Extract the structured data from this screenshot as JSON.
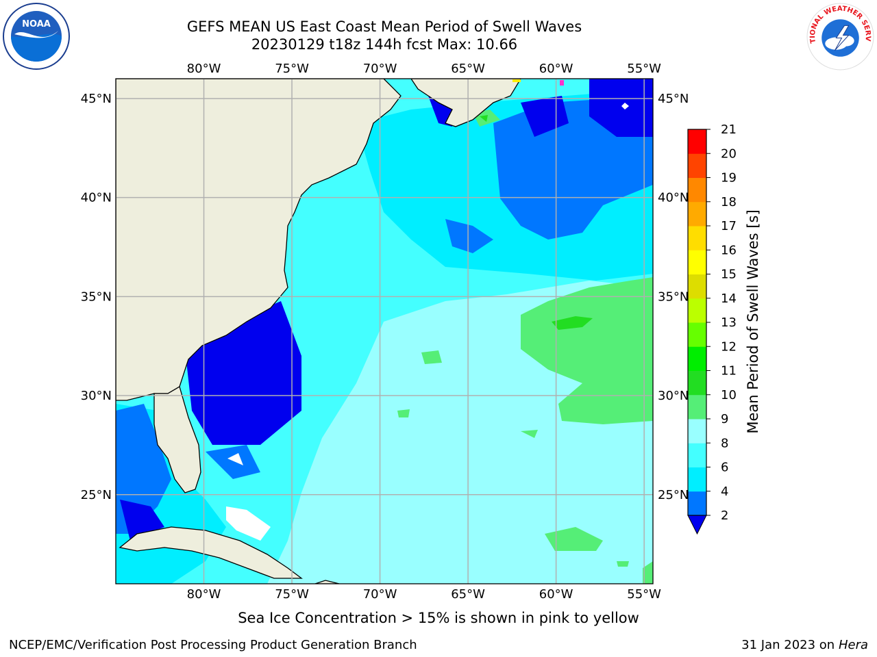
{
  "header": {
    "title_line1": "GEFS MEAN US East Coast Mean Period of Swell Waves",
    "title_line2": "20230129 t18z 144h fcst   Max: 10.66"
  },
  "logos": {
    "left": {
      "text": "NOAA",
      "icon": "noaa-logo-icon"
    },
    "right": {
      "text": "NATIONAL WEATHER SERVICE",
      "icon": "nws-logo-icon"
    }
  },
  "map": {
    "lon_labels": [
      "80°W",
      "75°W",
      "70°W",
      "65°W",
      "60°W",
      "55°W"
    ],
    "lat_labels": [
      "45°N",
      "40°N",
      "35°N",
      "30°N",
      "25°N"
    ],
    "lon_values": [
      -80,
      -75,
      -70,
      -65,
      -60,
      -55
    ],
    "lat_values": [
      45,
      40,
      35,
      30,
      25
    ],
    "lon_range": [
      -85,
      -54.5
    ],
    "lat_range": [
      20.5,
      46
    ],
    "colors": {
      "land": "#eeeedd",
      "grid": "#b0b0b0",
      "coast": "#000000"
    }
  },
  "colorbar": {
    "label": "Mean Period of Swell Waves [s]",
    "ticks": [
      "2",
      "4",
      "6",
      "8",
      "9",
      "10",
      "11",
      "12",
      "13",
      "14",
      "15",
      "16",
      "17",
      "18",
      "19",
      "20",
      "21"
    ],
    "colors": [
      "#0000ee",
      "#0077ff",
      "#00eeff",
      "#44ffff",
      "#99ffff",
      "#55ee77",
      "#22dd22",
      "#00ee00",
      "#66ff00",
      "#bbff00",
      "#dddd00",
      "#ffff00",
      "#ffdd00",
      "#ffaa00",
      "#ff8800",
      "#ff4400",
      "#ff0000"
    ]
  },
  "footer": {
    "note": "Sea Ice Concentration > 15% is shown in pink to yellow",
    "credit": "NCEP/EMC/Verification Post Processing Product Generation Branch",
    "date": "31 Jan 2023 on ",
    "host": "Hera"
  }
}
